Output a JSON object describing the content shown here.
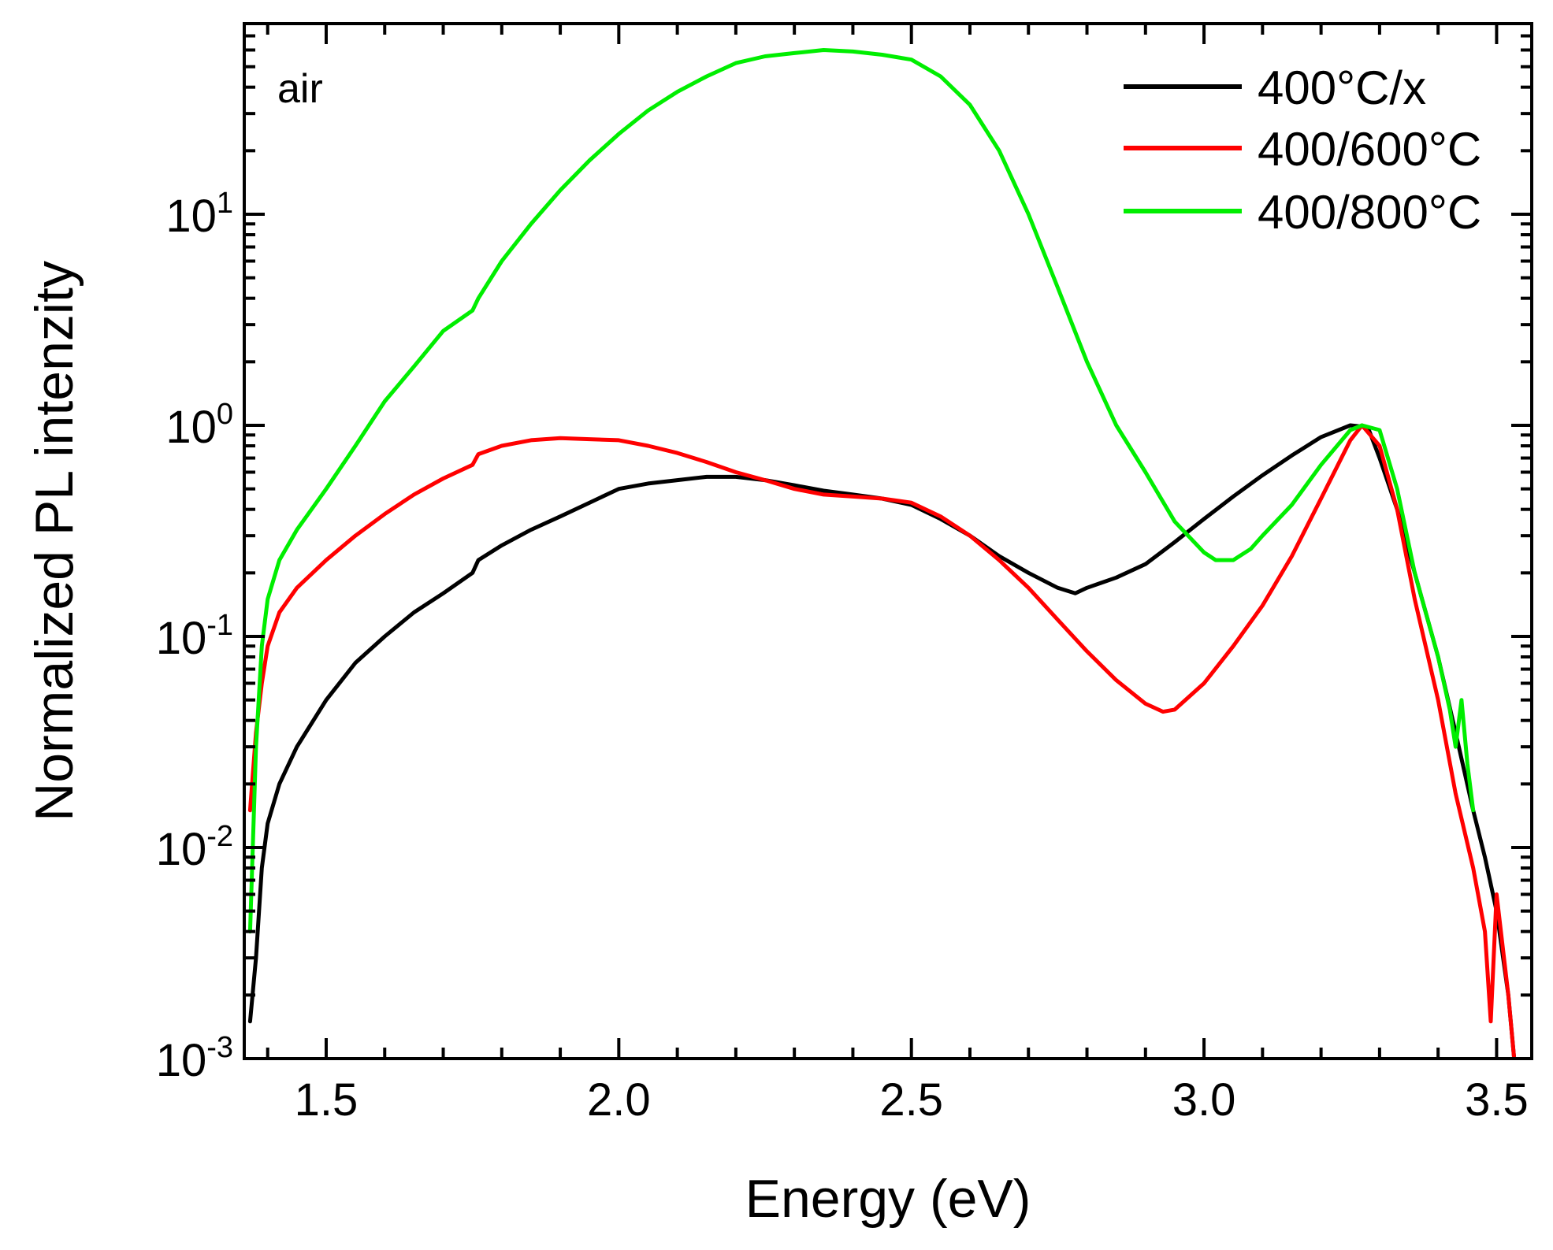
{
  "chart_data": {
    "type": "line",
    "title": "",
    "xlabel": "Energy (eV)",
    "ylabel": "Normalized PL intenzity",
    "xlim": [
      1.36,
      3.56
    ],
    "ylim": [
      0.001,
      80
    ],
    "yscale": "log",
    "grid": false,
    "legend_position": "top-right",
    "annotation": "air",
    "x_ticks": [
      {
        "value": 1.5,
        "label": "1.5"
      },
      {
        "value": 2.0,
        "label": "2.0"
      },
      {
        "value": 2.5,
        "label": "2.5"
      },
      {
        "value": 3.0,
        "label": "3.0"
      },
      {
        "value": 3.5,
        "label": "3.5"
      }
    ],
    "y_ticks": [
      {
        "value": 0.001,
        "base": "10",
        "exp": "-3"
      },
      {
        "value": 0.01,
        "base": "10",
        "exp": "-2"
      },
      {
        "value": 0.1,
        "base": "10",
        "exp": "-1"
      },
      {
        "value": 1,
        "base": "10",
        "exp": "0"
      },
      {
        "value": 10,
        "base": "10",
        "exp": "1"
      }
    ],
    "series": [
      {
        "name": "400°C/x",
        "color": "#000000",
        "x": [
          1.37,
          1.38,
          1.39,
          1.4,
          1.42,
          1.45,
          1.5,
          1.55,
          1.6,
          1.65,
          1.7,
          1.75,
          1.76,
          1.8,
          1.85,
          1.9,
          1.95,
          2.0,
          2.05,
          2.1,
          2.15,
          2.2,
          2.25,
          2.3,
          2.35,
          2.4,
          2.45,
          2.5,
          2.55,
          2.6,
          2.65,
          2.7,
          2.75,
          2.78,
          2.8,
          2.85,
          2.9,
          2.95,
          3.0,
          3.05,
          3.1,
          3.15,
          3.2,
          3.25,
          3.28,
          3.3,
          3.33,
          3.36,
          3.4,
          3.43,
          3.46,
          3.48,
          3.5,
          3.52,
          3.53
        ],
        "y": [
          0.0015,
          0.003,
          0.008,
          0.013,
          0.02,
          0.03,
          0.05,
          0.075,
          0.1,
          0.13,
          0.16,
          0.2,
          0.23,
          0.27,
          0.32,
          0.37,
          0.43,
          0.5,
          0.53,
          0.55,
          0.57,
          0.57,
          0.55,
          0.52,
          0.49,
          0.47,
          0.45,
          0.42,
          0.36,
          0.3,
          0.24,
          0.2,
          0.17,
          0.16,
          0.17,
          0.19,
          0.22,
          0.28,
          0.36,
          0.46,
          0.58,
          0.72,
          0.88,
          1.0,
          0.98,
          0.7,
          0.4,
          0.2,
          0.08,
          0.035,
          0.015,
          0.009,
          0.005,
          0.002,
          0.001
        ]
      },
      {
        "name": "400/600°C",
        "color": "#ff0000",
        "x": [
          1.37,
          1.38,
          1.39,
          1.4,
          1.42,
          1.45,
          1.5,
          1.55,
          1.6,
          1.65,
          1.7,
          1.75,
          1.76,
          1.8,
          1.85,
          1.9,
          1.95,
          2.0,
          2.05,
          2.1,
          2.15,
          2.2,
          2.25,
          2.3,
          2.35,
          2.4,
          2.45,
          2.5,
          2.55,
          2.6,
          2.65,
          2.7,
          2.75,
          2.8,
          2.85,
          2.9,
          2.93,
          2.95,
          3.0,
          3.05,
          3.1,
          3.15,
          3.2,
          3.25,
          3.27,
          3.3,
          3.33,
          3.36,
          3.4,
          3.43,
          3.46,
          3.48,
          3.49,
          3.5,
          3.52,
          3.53
        ],
        "y": [
          0.015,
          0.035,
          0.06,
          0.09,
          0.13,
          0.17,
          0.23,
          0.3,
          0.38,
          0.47,
          0.56,
          0.65,
          0.73,
          0.8,
          0.85,
          0.87,
          0.86,
          0.85,
          0.8,
          0.74,
          0.67,
          0.6,
          0.55,
          0.5,
          0.47,
          0.46,
          0.45,
          0.43,
          0.37,
          0.3,
          0.23,
          0.17,
          0.12,
          0.085,
          0.062,
          0.048,
          0.044,
          0.045,
          0.06,
          0.09,
          0.14,
          0.24,
          0.45,
          0.85,
          1.0,
          0.8,
          0.4,
          0.15,
          0.05,
          0.018,
          0.008,
          0.004,
          0.0015,
          0.006,
          0.002,
          0.001
        ]
      },
      {
        "name": "400/800°C",
        "color": "#00ee00",
        "x": [
          1.37,
          1.38,
          1.39,
          1.4,
          1.42,
          1.45,
          1.5,
          1.55,
          1.6,
          1.65,
          1.7,
          1.75,
          1.76,
          1.8,
          1.85,
          1.9,
          1.95,
          2.0,
          2.05,
          2.1,
          2.15,
          2.2,
          2.25,
          2.3,
          2.35,
          2.4,
          2.45,
          2.5,
          2.55,
          2.6,
          2.65,
          2.7,
          2.75,
          2.8,
          2.85,
          2.9,
          2.95,
          3.0,
          3.02,
          3.05,
          3.08,
          3.1,
          3.15,
          3.2,
          3.25,
          3.27,
          3.3,
          3.33,
          3.36,
          3.4,
          3.42,
          3.43,
          3.44,
          3.45,
          3.46
        ],
        "y": [
          0.004,
          0.03,
          0.09,
          0.15,
          0.23,
          0.32,
          0.5,
          0.8,
          1.3,
          1.9,
          2.8,
          3.5,
          4.0,
          6.0,
          9.0,
          13.0,
          18.0,
          24.0,
          31.0,
          38.0,
          45.0,
          52.0,
          56.0,
          58.0,
          60.0,
          59.0,
          57.0,
          54.0,
          45.0,
          33.0,
          20.0,
          10.0,
          4.5,
          2.0,
          1.0,
          0.6,
          0.35,
          0.25,
          0.23,
          0.23,
          0.26,
          0.3,
          0.42,
          0.65,
          0.95,
          1.0,
          0.95,
          0.5,
          0.2,
          0.08,
          0.045,
          0.03,
          0.05,
          0.025,
          0.015
        ]
      }
    ]
  }
}
